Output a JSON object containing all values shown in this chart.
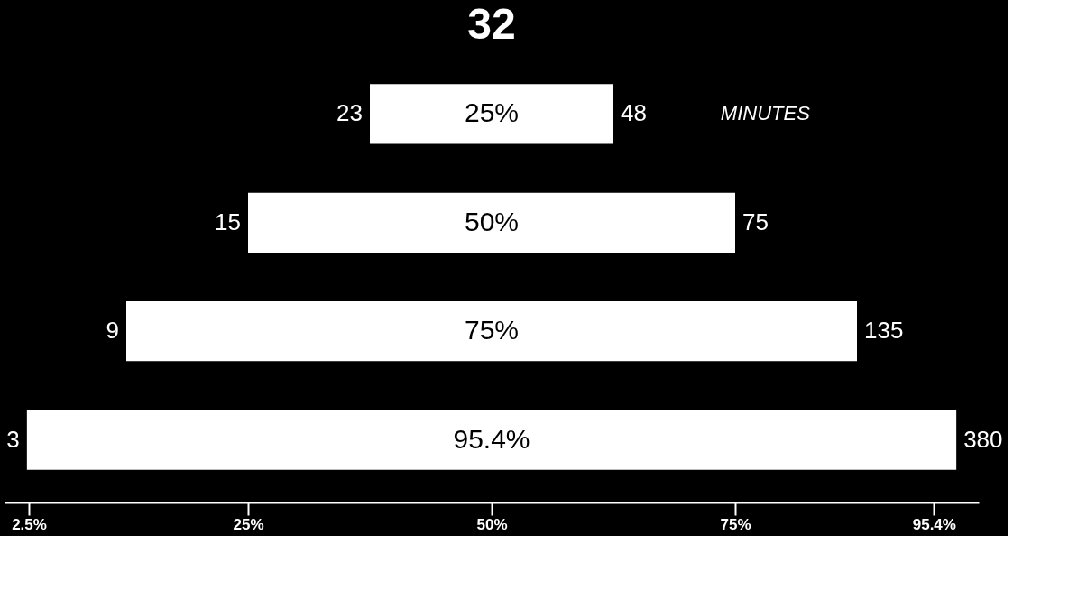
{
  "chart_data": {
    "type": "bar",
    "orientation": "horizontal",
    "title": "32",
    "categories": [
      null,
      null,
      null,
      null
    ],
    "base": [
      37.5,
      25,
      12.5,
      2.3
    ],
    "values": [
      25,
      50,
      75,
      95.4
    ],
    "value_labels": [
      "25%",
      "50%",
      "75%",
      "95.4%"
    ],
    "color": "#ffffff",
    "xlim": [
      0,
      100
    ],
    "xticks": [
      {
        "value": 2.5,
        "label": "2.5%"
      },
      {
        "value": 25,
        "label": "25%"
      },
      {
        "value": 50,
        "label": "50%"
      },
      {
        "value": 75,
        "label": "75%"
      },
      {
        "value": 95.4,
        "label": "95.4%"
      }
    ],
    "annotations": [
      {
        "text": "23",
        "x": 37.5
      },
      {
        "text": "48",
        "x": 62.5
      },
      {
        "text": "15",
        "x": 25
      },
      {
        "text": "75",
        "x": 75
      },
      {
        "text": "9",
        "x": 12.5
      },
      {
        "text": "135",
        "x": 87.5
      },
      {
        "text": "3",
        "x": 2.3
      },
      {
        "text": "380",
        "x": 97.7
      },
      "MINUTES"
    ],
    "grid": false
  }
}
